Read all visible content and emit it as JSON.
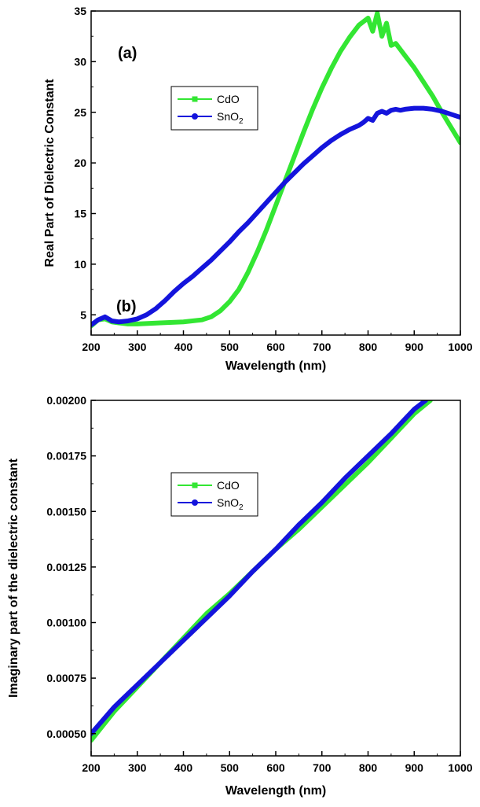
{
  "chart_data": [
    {
      "type": "line",
      "panel_label": "(a)",
      "xlabel": "Wavelength (nm)",
      "ylabel": "Real Part of Dielectric Constant",
      "xlim": [
        200,
        1000
      ],
      "ylim": [
        3,
        35
      ],
      "xticks": [
        200,
        300,
        400,
        500,
        600,
        700,
        800,
        900,
        1000
      ],
      "yticks": [
        5,
        10,
        15,
        20,
        25,
        30,
        35
      ],
      "ytick_labels": [
        "5",
        "10",
        "15",
        "20",
        "25",
        "30",
        "35"
      ],
      "grid": false,
      "legend": {
        "placement": "upper-left",
        "entries": [
          {
            "name": "CdO",
            "sub": ""
          },
          {
            "name": "SnO",
            "sub": "2"
          }
        ]
      },
      "series": [
        {
          "name": "CdO",
          "color": "#33e633",
          "marker": "square",
          "x": [
            200,
            215,
            230,
            245,
            260,
            280,
            300,
            350,
            400,
            440,
            460,
            480,
            500,
            520,
            540,
            560,
            580,
            600,
            620,
            640,
            660,
            680,
            700,
            720,
            740,
            760,
            780,
            800,
            810,
            820,
            830,
            840,
            850,
            860,
            880,
            900,
            920,
            940,
            960,
            980,
            1000
          ],
          "values": [
            3.9,
            4.5,
            4.6,
            4.3,
            4.2,
            4.1,
            4.1,
            4.2,
            4.3,
            4.5,
            4.8,
            5.4,
            6.3,
            7.5,
            9.2,
            11.2,
            13.4,
            15.8,
            18.2,
            20.6,
            23.0,
            25.3,
            27.4,
            29.3,
            31.0,
            32.4,
            33.6,
            34.3,
            33.0,
            34.8,
            32.5,
            33.8,
            31.6,
            31.8,
            30.6,
            29.4,
            28.0,
            26.6,
            25.0,
            23.5,
            22.0
          ]
        },
        {
          "name": "SnO2",
          "color": "#1414dc",
          "marker": "circle",
          "x": [
            200,
            215,
            230,
            245,
            260,
            280,
            300,
            320,
            340,
            360,
            380,
            400,
            420,
            440,
            460,
            480,
            500,
            520,
            540,
            560,
            580,
            600,
            620,
            640,
            660,
            680,
            700,
            720,
            740,
            760,
            780,
            790,
            800,
            810,
            820,
            830,
            840,
            850,
            860,
            870,
            880,
            900,
            920,
            940,
            960,
            980,
            1000
          ],
          "values": [
            4.0,
            4.5,
            4.8,
            4.4,
            4.3,
            4.4,
            4.6,
            5.0,
            5.6,
            6.4,
            7.3,
            8.1,
            8.8,
            9.6,
            10.4,
            11.3,
            12.2,
            13.2,
            14.1,
            15.1,
            16.1,
            17.1,
            18.1,
            19.0,
            19.9,
            20.7,
            21.5,
            22.2,
            22.8,
            23.3,
            23.7,
            24.0,
            24.4,
            24.2,
            24.9,
            25.1,
            24.9,
            25.2,
            25.3,
            25.2,
            25.3,
            25.4,
            25.4,
            25.3,
            25.1,
            24.8,
            24.5
          ]
        }
      ]
    },
    {
      "type": "line",
      "panel_label": "(b)",
      "xlabel": "Wavelength (nm)",
      "ylabel": "Imaginary part of the dielectric constant",
      "xlim": [
        200,
        1000
      ],
      "ylim": [
        0.0004,
        0.002
      ],
      "xticks": [
        200,
        300,
        400,
        500,
        600,
        700,
        800,
        900,
        1000
      ],
      "yticks": [
        0.0005,
        0.00075,
        0.001,
        0.00125,
        0.0015,
        0.00175,
        0.002
      ],
      "ytick_labels": [
        "0.00050",
        "0.00075",
        "0.00100",
        "0.00125",
        "0.00150",
        "0.00175",
        "0.00200"
      ],
      "grid": false,
      "legend": {
        "placement": "upper-left",
        "entries": [
          {
            "name": "CdO",
            "sub": ""
          },
          {
            "name": "SnO",
            "sub": "2"
          }
        ]
      },
      "series": [
        {
          "name": "CdO",
          "color": "#33e633",
          "marker": "square",
          "x": [
            200,
            250,
            300,
            350,
            400,
            450,
            500,
            550,
            600,
            650,
            700,
            750,
            800,
            850,
            900,
            935
          ],
          "values": [
            0.00047,
            0.0006,
            0.00071,
            0.00082,
            0.00093,
            0.00104,
            0.00113,
            0.00123,
            0.00133,
            0.00142,
            0.00152,
            0.00162,
            0.00172,
            0.00183,
            0.00194,
            0.002
          ]
        },
        {
          "name": "SnO2",
          "color": "#1414dc",
          "marker": "circle",
          "x": [
            200,
            250,
            300,
            350,
            400,
            450,
            500,
            550,
            600,
            650,
            700,
            750,
            800,
            850,
            900,
            925
          ],
          "values": [
            0.0005,
            0.00062,
            0.00072,
            0.00082,
            0.00092,
            0.00102,
            0.00112,
            0.00123,
            0.00133,
            0.00144,
            0.00154,
            0.00165,
            0.00175,
            0.00185,
            0.00196,
            0.002
          ]
        }
      ]
    }
  ]
}
